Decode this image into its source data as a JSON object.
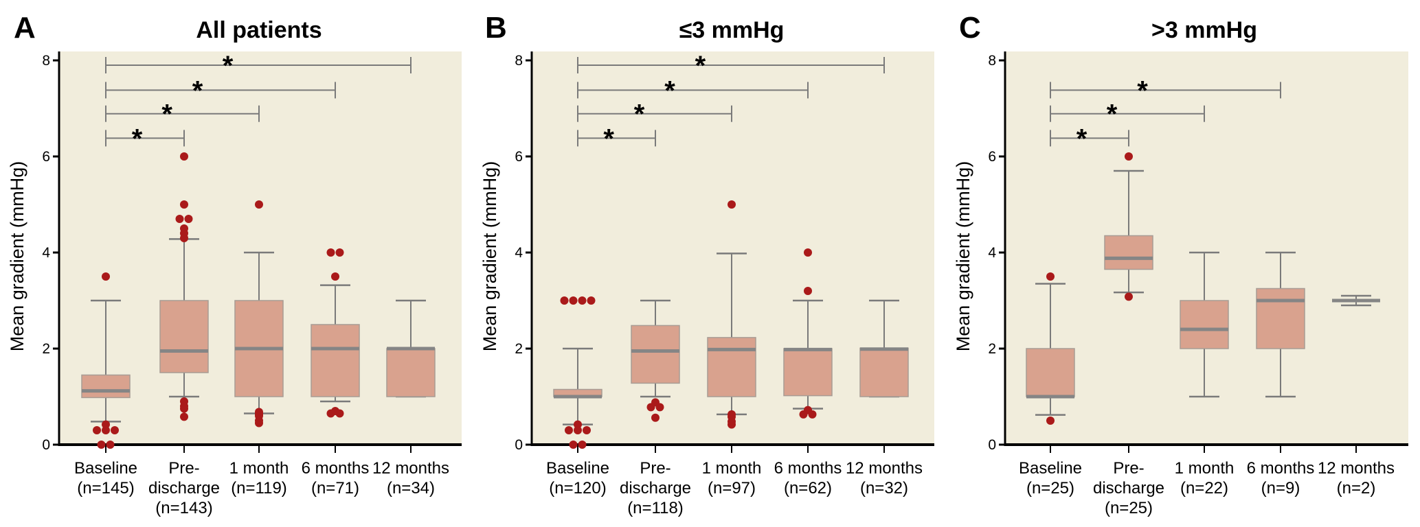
{
  "chart_data": [
    {
      "type": "box",
      "panel_letter": "A",
      "title": "All patients",
      "xlabel": "",
      "ylabel": "Mean gradient (mmHg)",
      "ylim": [
        0,
        8
      ],
      "yticks": [
        "0",
        "2",
        "4",
        "6",
        "8"
      ],
      "categories": [
        {
          "line1": "Baseline",
          "line2": "(n=145)",
          "line3": ""
        },
        {
          "line1": "Pre-",
          "line2": "discharge",
          "line3": "(n=143)"
        },
        {
          "line1": "1 month",
          "line2": "(n=119)",
          "line3": ""
        },
        {
          "line1": "6 months",
          "line2": "(n=71)",
          "line3": ""
        },
        {
          "line1": "12 months",
          "line2": "(n=34)",
          "line3": ""
        }
      ],
      "boxes": [
        {
          "whisker_low": 0.48,
          "q1": 0.98,
          "median": 1.12,
          "q3": 1.45,
          "whisker_high": 3.0,
          "outliers": [
            3.5,
            0.42,
            0.3,
            0.3,
            0.3,
            0.0,
            0.0
          ]
        },
        {
          "whisker_low": 1.0,
          "q1": 1.5,
          "median": 1.95,
          "q3": 3.0,
          "whisker_high": 4.28,
          "outliers": [
            6.0,
            5.0,
            4.7,
            4.7,
            4.5,
            4.4,
            4.3,
            0.9,
            0.8,
            0.75,
            0.58
          ]
        },
        {
          "whisker_low": 0.65,
          "q1": 1.0,
          "median": 2.0,
          "q3": 3.0,
          "whisker_high": 4.0,
          "outliers": [
            5.0,
            0.68,
            0.65,
            0.62,
            0.6,
            0.5,
            0.45
          ]
        },
        {
          "whisker_low": 0.9,
          "q1": 1.0,
          "median": 2.0,
          "q3": 2.5,
          "whisker_high": 3.32,
          "outliers": [
            4.0,
            4.0,
            3.5,
            0.7,
            0.65,
            0.65
          ]
        },
        {
          "whisker_low": 1.0,
          "q1": 1.0,
          "median": 2.0,
          "q3": 2.0,
          "whisker_high": 3.0,
          "outliers": []
        }
      ],
      "significance": [
        {
          "from": 0,
          "to": 4,
          "y": 7.9,
          "label": "*"
        },
        {
          "from": 0,
          "to": 3,
          "y": 7.38,
          "label": "*"
        },
        {
          "from": 0,
          "to": 2,
          "y": 6.89,
          "label": "*"
        },
        {
          "from": 0,
          "to": 1,
          "y": 6.38,
          "label": "*"
        }
      ]
    },
    {
      "type": "box",
      "panel_letter": "B",
      "title": "≤3 mmHg",
      "xlabel": "",
      "ylabel": "Mean gradient (mmHg)",
      "ylim": [
        0,
        8
      ],
      "yticks": [
        "0",
        "2",
        "4",
        "6",
        "8"
      ],
      "categories": [
        {
          "line1": "Baseline",
          "line2": "(n=120)",
          "line3": ""
        },
        {
          "line1": "Pre-",
          "line2": "discharge",
          "line3": "(n=118)"
        },
        {
          "line1": "1 month",
          "line2": "(n=97)",
          "line3": ""
        },
        {
          "line1": "6 months",
          "line2": "(n=62)",
          "line3": ""
        },
        {
          "line1": "12 months",
          "line2": "(n=32)",
          "line3": ""
        }
      ],
      "boxes": [
        {
          "whisker_low": 0.42,
          "q1": 1.0,
          "median": 1.0,
          "q3": 1.15,
          "whisker_high": 2.0,
          "outliers": [
            3.0,
            3.0,
            3.0,
            3.0,
            0.42,
            0.3,
            0.3,
            0.3,
            0.0,
            0.0
          ]
        },
        {
          "whisker_low": 1.0,
          "q1": 1.28,
          "median": 1.95,
          "q3": 2.48,
          "whisker_high": 3.0,
          "outliers": [
            0.88,
            0.78,
            0.78,
            0.56
          ]
        },
        {
          "whisker_low": 0.63,
          "q1": 1.0,
          "median": 1.98,
          "q3": 2.23,
          "whisker_high": 3.98,
          "outliers": [
            5.0,
            0.63,
            0.58,
            0.48,
            0.42
          ]
        },
        {
          "whisker_low": 0.75,
          "q1": 1.02,
          "median": 1.98,
          "q3": 2.0,
          "whisker_high": 3.0,
          "outliers": [
            4.0,
            3.2,
            0.72,
            0.63,
            0.63
          ]
        },
        {
          "whisker_low": 1.0,
          "q1": 1.0,
          "median": 1.99,
          "q3": 2.01,
          "whisker_high": 3.0,
          "outliers": []
        }
      ],
      "significance": [
        {
          "from": 0,
          "to": 4,
          "y": 7.9,
          "label": "*"
        },
        {
          "from": 0,
          "to": 3,
          "y": 7.38,
          "label": "*"
        },
        {
          "from": 0,
          "to": 2,
          "y": 6.89,
          "label": "*"
        },
        {
          "from": 0,
          "to": 1,
          "y": 6.38,
          "label": "*"
        }
      ]
    },
    {
      "type": "box",
      "panel_letter": "C",
      "title": ">3 mmHg",
      "xlabel": "",
      "ylabel": "Mean gradient (mmHg)",
      "ylim": [
        0,
        8
      ],
      "yticks": [
        "0",
        "2",
        "4",
        "6",
        "8"
      ],
      "categories": [
        {
          "line1": "Baseline",
          "line2": "(n=25)",
          "line3": ""
        },
        {
          "line1": "Pre-",
          "line2": "discharge",
          "line3": "(n=25)"
        },
        {
          "line1": "1 month",
          "line2": "(n=22)",
          "line3": ""
        },
        {
          "line1": "6 months",
          "line2": "(n=9)",
          "line3": ""
        },
        {
          "line1": "12 months",
          "line2": "(n=2)",
          "line3": ""
        }
      ],
      "boxes": [
        {
          "whisker_low": 0.62,
          "q1": 1.0,
          "median": 1.0,
          "q3": 2.0,
          "whisker_high": 3.35,
          "outliers": [
            3.5,
            0.5
          ]
        },
        {
          "whisker_low": 3.17,
          "q1": 3.65,
          "median": 3.88,
          "q3": 4.35,
          "whisker_high": 5.7,
          "outliers": [
            6.0,
            3.08
          ]
        },
        {
          "whisker_low": 1.0,
          "q1": 2.0,
          "median": 2.4,
          "q3": 3.0,
          "whisker_high": 4.0,
          "outliers": []
        },
        {
          "whisker_low": 1.0,
          "q1": 2.0,
          "median": 3.0,
          "q3": 3.25,
          "whisker_high": 4.0,
          "outliers": []
        },
        {
          "whisker_low": 2.9,
          "q1": 3.0,
          "median": 3.0,
          "q3": 3.0,
          "whisker_high": 3.1,
          "outliers": []
        }
      ],
      "significance": [
        {
          "from": 0,
          "to": 3,
          "y": 7.38,
          "label": "*"
        },
        {
          "from": 0,
          "to": 2,
          "y": 6.89,
          "label": "*"
        },
        {
          "from": 0,
          "to": 1,
          "y": 6.38,
          "label": "*"
        }
      ]
    }
  ],
  "colors": {
    "plot_background": "#f1eddc",
    "box_fill": "#d9a28e",
    "box_edge": "#a89c94",
    "median": "#858585",
    "whisker": "#7a7a7a",
    "outlier": "#aa1a1a",
    "axis": "#000000"
  }
}
